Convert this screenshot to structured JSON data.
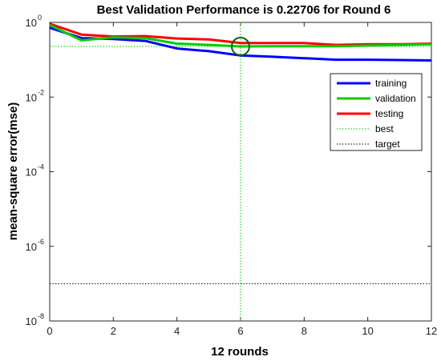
{
  "chart_data": {
    "type": "line",
    "title": "Best Validation Performance is 0.22706 for Round 6",
    "xlabel": "12 rounds",
    "ylabel": "mean-square error(mse)",
    "xlim": [
      0,
      12
    ],
    "ylim": [
      1e-08,
      1
    ],
    "yscale": "log",
    "x_ticks": [
      "0",
      "2",
      "4",
      "6",
      "8",
      "10",
      "12"
    ],
    "y_ticks": [
      {
        "base": "10",
        "exp": "0"
      },
      {
        "base": "10",
        "exp": "-2"
      },
      {
        "base": "10",
        "exp": "-4"
      },
      {
        "base": "10",
        "exp": "-6"
      },
      {
        "base": "10",
        "exp": "-8"
      }
    ],
    "x": [
      0,
      1,
      2,
      3,
      4,
      5,
      6,
      7,
      8,
      9,
      10,
      11,
      12
    ],
    "series": [
      {
        "name": "training",
        "color": "#0000ff",
        "values": [
          0.72,
          0.38,
          0.36,
          0.32,
          0.2,
          0.17,
          0.13,
          0.12,
          0.11,
          0.1,
          0.1,
          0.098,
          0.096
        ]
      },
      {
        "name": "validation",
        "color": "#00cc00",
        "values": [
          0.85,
          0.33,
          0.4,
          0.38,
          0.27,
          0.25,
          0.22706,
          0.23,
          0.23,
          0.23,
          0.24,
          0.25,
          0.26
        ]
      },
      {
        "name": "testing",
        "color": "#ff0000",
        "values": [
          0.92,
          0.47,
          0.42,
          0.43,
          0.37,
          0.35,
          0.28,
          0.28,
          0.28,
          0.25,
          0.26,
          0.26,
          0.27
        ]
      }
    ],
    "best": {
      "label": "best",
      "x": 6,
      "y": 0.22706,
      "color": "#00cc00"
    },
    "target": {
      "label": "target",
      "y": 1e-07,
      "color": "#000000"
    },
    "legend": [
      "training",
      "validation",
      "testing",
      "best",
      "target"
    ],
    "legend_position": "top-right",
    "grid": false
  }
}
